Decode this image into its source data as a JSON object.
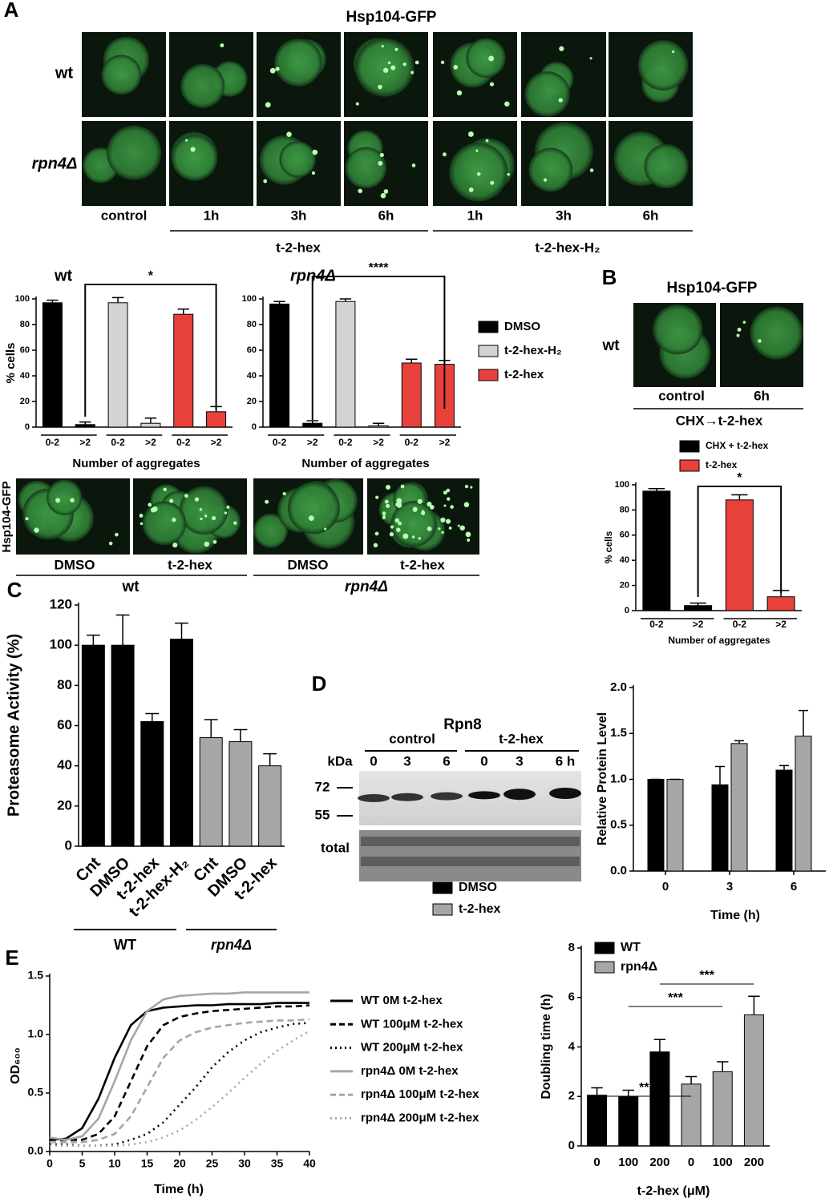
{
  "panels": {
    "A": {
      "letter": "A",
      "title": "Hsp104-GFP",
      "rows": [
        "wt",
        "rpn4Δ"
      ],
      "columns": [
        "control",
        "1h",
        "3h",
        "6h",
        "1h",
        "3h",
        "6h"
      ],
      "groups": [
        "t-2-hex",
        "t-2-hex-H₂"
      ],
      "lower": {
        "ylabel": "Hsp104-GFP",
        "columns": [
          "DMSO",
          "t-2-hex",
          "DMSO",
          "t-2-hex"
        ],
        "groups": [
          "wt",
          "rpn4Δ"
        ]
      }
    },
    "B": {
      "letter": "B",
      "title": "Hsp104-GFP",
      "row": "wt",
      "columns": [
        "control",
        "6h"
      ],
      "treatment": "CHX→t-2-hex"
    },
    "C": {
      "letter": "C"
    },
    "D": {
      "letter": "D",
      "title": "Rpn8",
      "groups": [
        "control",
        "t-2-hex"
      ],
      "unit": "kDa",
      "lanes": [
        "0",
        "3",
        "6",
        "0",
        "3",
        "6 h"
      ],
      "markers": [
        "72",
        "55"
      ],
      "total": "total"
    },
    "E": {
      "letter": "E"
    }
  },
  "chart_data": [
    {
      "type": "bar",
      "title": "wt",
      "categories": [
        "0-2",
        ">2"
      ],
      "series": [
        {
          "name": "DMSO",
          "color": "#000000",
          "values": [
            97,
            2
          ],
          "errors": [
            2,
            2
          ]
        },
        {
          "name": "t-2-hex-H₂",
          "color": "#d3d3d3",
          "values": [
            97,
            3
          ],
          "errors": [
            4,
            4
          ]
        },
        {
          "name": "t-2-hex",
          "color": "#e8413c",
          "values": [
            88,
            12
          ],
          "errors": [
            4,
            4
          ]
        }
      ],
      "xlabel": "Number of aggregates",
      "ylabel": "% cells",
      "ylim": [
        0,
        100
      ],
      "yticks": [
        0,
        20,
        40,
        60,
        80,
        100
      ],
      "annotations": [
        "*"
      ]
    },
    {
      "type": "bar",
      "title": "rpn4Δ",
      "categories": [
        "0-2",
        ">2"
      ],
      "series": [
        {
          "color": "#000000",
          "values": [
            96,
            3
          ],
          "errors": [
            2,
            2
          ]
        },
        {
          "color": "#d3d3d3",
          "values": [
            98,
            1
          ],
          "errors": [
            2,
            2
          ]
        },
        {
          "color": "#e8413c",
          "values": [
            50,
            49
          ],
          "errors": [
            3,
            3
          ]
        }
      ],
      "xlabel": "Number of aggregates",
      "ylim": [
        0,
        100
      ],
      "yticks": [
        0,
        20,
        40,
        60,
        80,
        100
      ],
      "annotations": [
        "****"
      ]
    },
    {
      "type": "bar",
      "categories": [
        "0-2",
        ">2"
      ],
      "series": [
        {
          "name": "CHX + t-2-hex",
          "color": "#000000",
          "values": [
            95,
            4
          ],
          "errors": [
            2,
            2
          ]
        },
        {
          "name": "t-2-hex",
          "color": "#e8413c",
          "values": [
            88,
            11
          ],
          "errors": [
            4,
            5
          ]
        }
      ],
      "xlabel": "Number of aggregates",
      "ylabel": "% cells",
      "ylim": [
        0,
        100
      ],
      "yticks": [
        0,
        20,
        40,
        60,
        80,
        100
      ],
      "annotations": [
        "*"
      ]
    },
    {
      "type": "bar",
      "categories": [
        "Cnt",
        "DMSO",
        "t-2-hex",
        "t-2-hex-H₂",
        "Cnt",
        "DMSO",
        "t-2-hex"
      ],
      "values": [
        100,
        100,
        62,
        103,
        54,
        52,
        40
      ],
      "errors": [
        5,
        15,
        4,
        8,
        9,
        6,
        6
      ],
      "colors": [
        "#000000",
        "#000000",
        "#000000",
        "#000000",
        "#a6a6a6",
        "#a6a6a6",
        "#a6a6a6"
      ],
      "groups": [
        "WT",
        "rpn4Δ"
      ],
      "ylabel": "Proteasome Activity (%)",
      "ylim": [
        0,
        120
      ],
      "yticks": [
        0,
        20,
        40,
        60,
        80,
        100,
        120
      ]
    },
    {
      "type": "bar",
      "categories": [
        "0",
        "3",
        "6"
      ],
      "series": [
        {
          "name": "DMSO",
          "color": "#000000",
          "values": [
            1,
            0.94,
            1.1
          ],
          "errors": [
            0,
            0.2,
            0.05
          ]
        },
        {
          "name": "t-2-hex",
          "color": "#a6a6a6",
          "values": [
            1,
            1.39,
            1.47
          ],
          "errors": [
            0,
            0.03,
            0.28
          ]
        }
      ],
      "xlabel": "Time (h)",
      "ylabel": "Relative Protein Level",
      "ylim": [
        0,
        2
      ],
      "yticks": [
        {
          "value": 0,
          "label": "0.0"
        },
        0.5,
        {
          "value": 1,
          "label": "1.0"
        },
        1.5,
        {
          "value": 2,
          "label": "2.0"
        }
      ]
    },
    {
      "type": "line",
      "x": [
        0,
        2.5,
        5,
        7.5,
        10,
        12.5,
        15,
        17.5,
        20,
        22.5,
        25,
        27.5,
        30,
        32.5,
        35,
        37.5,
        40
      ],
      "series": [
        {
          "name": "WT 0M t-2-hex",
          "color": "#000000",
          "dash": "solid",
          "values": [
            0.1,
            0.11,
            0.2,
            0.45,
            0.8,
            1.08,
            1.2,
            1.23,
            1.24,
            1.25,
            1.25,
            1.26,
            1.26,
            1.26,
            1.27,
            1.27,
            1.27
          ]
        },
        {
          "name": "WT 100μM t-2-hex",
          "color": "#000000",
          "dash": "dashed",
          "values": [
            0.1,
            0.1,
            0.1,
            0.15,
            0.3,
            0.6,
            0.9,
            1.08,
            1.15,
            1.18,
            1.2,
            1.21,
            1.22,
            1.23,
            1.24,
            1.24,
            1.25
          ]
        },
        {
          "name": "WT 200μM t-2-hex",
          "color": "#000000",
          "dash": "dotted",
          "values": [
            0.06,
            0.06,
            0.05,
            0.05,
            0.06,
            0.1,
            0.15,
            0.25,
            0.4,
            0.55,
            0.72,
            0.85,
            0.95,
            1.02,
            1.06,
            1.09,
            1.1
          ]
        },
        {
          "name": "rpn4Δ 0M t-2-hex",
          "color": "#a6a6a6",
          "dash": "solid",
          "values": [
            0.12,
            0.1,
            0.13,
            0.28,
            0.6,
            0.95,
            1.2,
            1.3,
            1.33,
            1.34,
            1.35,
            1.35,
            1.36,
            1.36,
            1.36,
            1.36,
            1.36
          ]
        },
        {
          "name": "rpn4Δ 100μM t-2-hex",
          "color": "#a6a6a6",
          "dash": "dashed",
          "values": [
            0.08,
            0.08,
            0.08,
            0.1,
            0.15,
            0.3,
            0.55,
            0.8,
            0.95,
            1.02,
            1.06,
            1.08,
            1.1,
            1.11,
            1.12,
            1.12,
            1.13
          ]
        },
        {
          "name": "rpn4Δ 200μM t-2-hex",
          "color": "#a6a6a6",
          "dash": "dotted",
          "values": [
            0.05,
            0.05,
            0.05,
            0.05,
            0.05,
            0.06,
            0.08,
            0.12,
            0.18,
            0.27,
            0.38,
            0.5,
            0.63,
            0.75,
            0.86,
            0.95,
            1.03
          ]
        }
      ],
      "xlabel": "Time (h)",
      "ylabel": "OD₆₀₀",
      "xlim": [
        0,
        40
      ],
      "xticks": [
        0,
        5,
        10,
        15,
        20,
        25,
        30,
        35,
        40
      ],
      "ylim": [
        0,
        1.5
      ],
      "yticks": [
        {
          "value": 0,
          "label": "0.0"
        },
        0.5,
        {
          "value": 1,
          "label": "1.0"
        },
        1.5
      ]
    },
    {
      "type": "bar",
      "categories": [
        "0",
        "100",
        "200"
      ],
      "series": [
        {
          "name": "WT",
          "color": "#000000",
          "values": [
            2.05,
            2.0,
            3.8
          ],
          "errors": [
            0.3,
            0.25,
            0.5
          ]
        },
        {
          "name": "rpn4Δ",
          "color": "#a6a6a6",
          "values": [
            2.5,
            3.0,
            5.3
          ],
          "errors": [
            0.3,
            0.4,
            0.75
          ]
        }
      ],
      "xlabel": "t-2-hex (μM)",
      "ylabel": "Doubling time (h)",
      "ylim": [
        0,
        8
      ],
      "yticks": [
        0,
        2,
        4,
        6,
        8
      ],
      "annotations": [
        "**",
        "***",
        "***"
      ]
    }
  ]
}
